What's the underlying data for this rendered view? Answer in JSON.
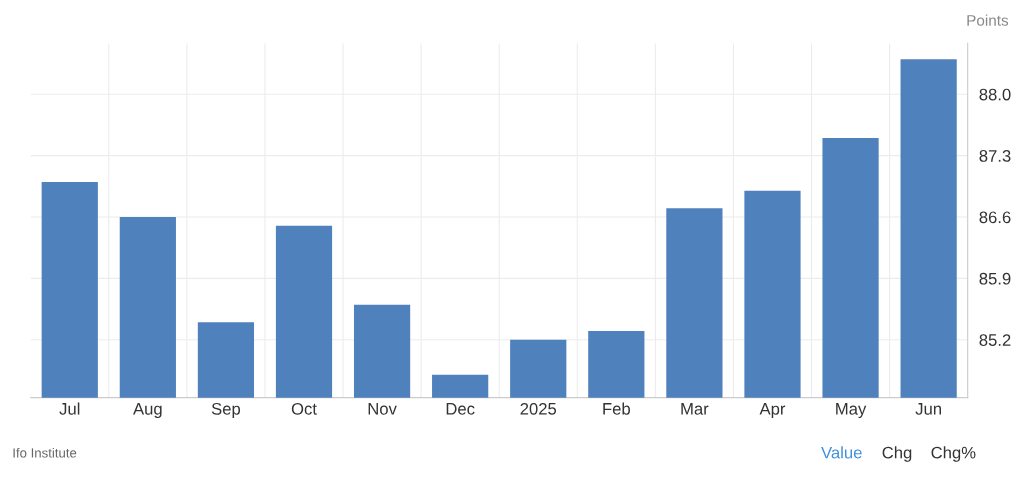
{
  "chart_data": {
    "type": "bar",
    "ylabel": "Points",
    "categories": [
      "Jul",
      "Aug",
      "Sep",
      "Oct",
      "Nov",
      "Dec",
      "2025",
      "Feb",
      "Mar",
      "Apr",
      "May",
      "Jun"
    ],
    "values": [
      87.0,
      86.6,
      85.4,
      86.5,
      85.6,
      84.8,
      85.2,
      85.3,
      86.7,
      86.9,
      87.5,
      88.4
    ],
    "color": "#4f81bd",
    "ylim": [
      84.54,
      88.58
    ],
    "yticks": [
      85.2,
      85.9,
      86.6,
      87.3,
      {
        "value": 88.0,
        "label": "88.0"
      }
    ],
    "grid": true,
    "annotations": [
      "Ifo Institute",
      "Value",
      "Chg",
      "Chg%"
    ]
  }
}
